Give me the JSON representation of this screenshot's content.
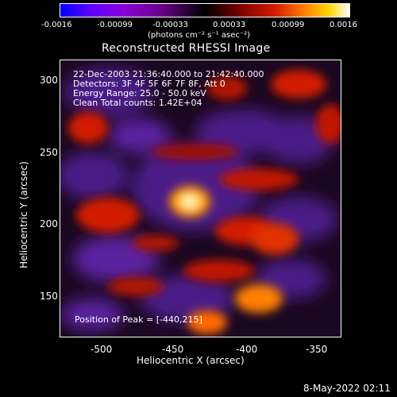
{
  "colorbar": {
    "ticks": [
      "-0.0016",
      "-0.00099",
      "-0.00033",
      "0.00033",
      "0.00099",
      "0.0016"
    ],
    "units_label": "(photons cm⁻² s⁻¹ asec⁻²)"
  },
  "title": "Reconstructed RHESSI Image",
  "info": {
    "time": "22-Dec-2003 21:36:40.000 to 21:42:40.000",
    "detectors": "Detectors: 3F 4F 5F 6F 7F 8F, Att 0",
    "energy": "Energy Range: 25.0 - 50.0 keV",
    "clean": "Clean     Total counts: 1.42E+04"
  },
  "peak_text": "Position of Peak = [-440,215]",
  "axes": {
    "xlabel": "Heliocentric X (arcsec)",
    "ylabel": "Heliocentric Y (arcsec)",
    "xticks": [
      "-500",
      "-450",
      "-400",
      "-350"
    ],
    "yticks": [
      "300",
      "250",
      "200",
      "150"
    ]
  },
  "footer_timestamp": "8-May-2022 02:11",
  "colors": {
    "positive_peak": "#fff8c0",
    "positive_strong": "#ff6a00",
    "positive": "#cc1500",
    "negative": "#5a1a9a",
    "background": "#000000"
  }
}
